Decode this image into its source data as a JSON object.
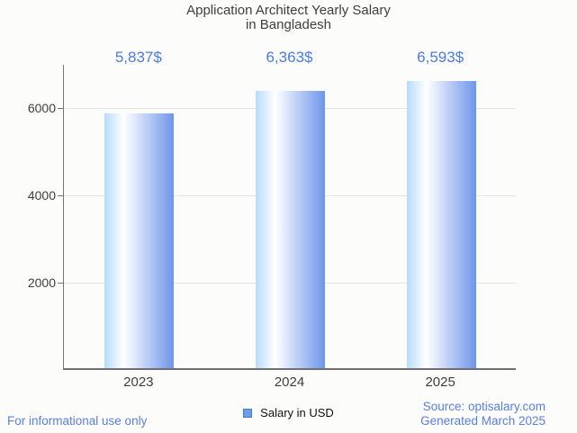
{
  "background_color": "#fcfcfa",
  "title": {
    "line1": "Application Architect Yearly Salary",
    "line2": "in Bangladesh",
    "color": "#3e3e3e"
  },
  "chart_data": {
    "type": "bar",
    "title": "Application Architect Yearly Salary in Bangladesh",
    "categories": [
      "2023",
      "2024",
      "2025"
    ],
    "values": [
      5837,
      6363,
      6593
    ],
    "value_labels": [
      "5,837$",
      "6,363$",
      "6,593$"
    ],
    "xlabel": "",
    "ylabel": "",
    "ylim": [
      0,
      7000
    ],
    "yticks": [
      2000,
      4000,
      6000
    ],
    "grid": true,
    "legend_position": "bottom",
    "legend_label": "Salary in USD",
    "value_label_color": "#4c7be4",
    "bar_gradient": [
      "#b7dbfc",
      "#ffffff",
      "#6d95ea"
    ],
    "bar_gradient_stops_pct": [
      0,
      28,
      100
    ],
    "legend_swatch_fill": "#6d9eea",
    "legend_swatch_border": "#4a78c2",
    "axis_color": "#757575",
    "gridline_color": "#e4e4e2"
  },
  "footer": {
    "left_note": "For informational use only",
    "source": "Source: optisalary.com",
    "generated": "Generated March 2025",
    "link_color": "#5b7ee1"
  }
}
